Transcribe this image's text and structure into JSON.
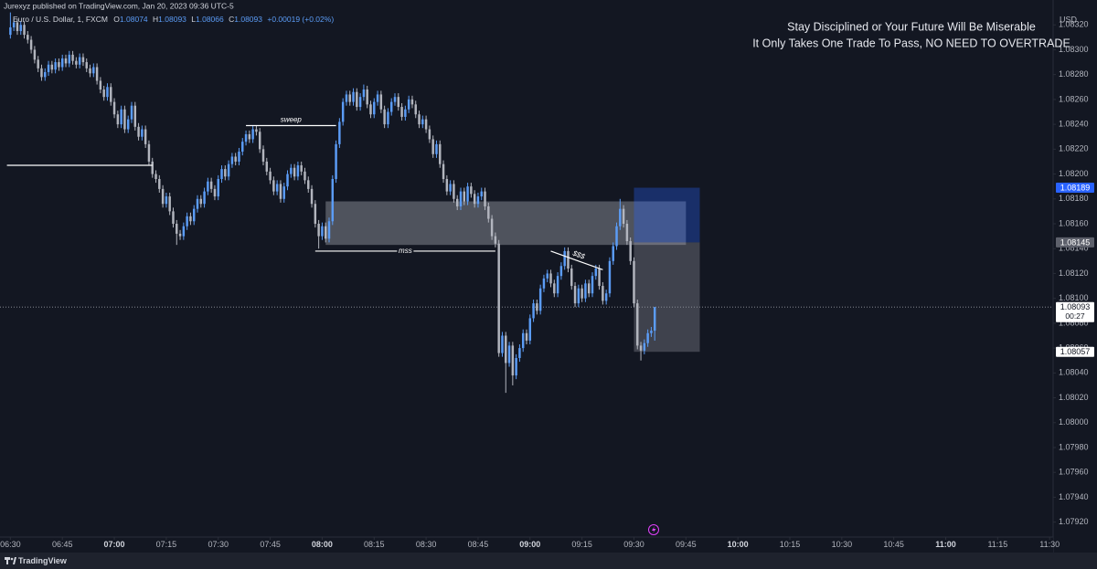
{
  "header": "Jurexyz published on TradingView.com, Jan 20, 2023 09:36 UTC-5",
  "footer": "TradingView",
  "chart_data": {
    "type": "candlestick",
    "symbol": "Euro / U.S. Dollar, 1, FXCM",
    "ohlc_letters": [
      "O",
      "H",
      "L",
      "C"
    ],
    "change": "+0.00019 (+0.02%)",
    "currency": "USD",
    "notes": [
      "Stay Disciplined or Your Future Will Be Miserable",
      "It Only Takes One Trade To Pass, NO NEED TO OVERTRADE"
    ],
    "countdown": "00:27",
    "up_color": "#5b9cf6",
    "down_color": "#b2b5be",
    "grid": false,
    "xlim": [
      "06:27",
      "11:31"
    ],
    "ylim": [
      1.07908,
      1.0834
    ],
    "xticks": [
      "06:30",
      "06:45",
      "07:00",
      "07:15",
      "07:30",
      "07:45",
      "08:00",
      "08:15",
      "08:30",
      "08:45",
      "09:00",
      "09:15",
      "09:30",
      "09:45",
      "10:00",
      "10:15",
      "10:30",
      "10:45",
      "11:00",
      "11:15",
      "11:30"
    ],
    "yticks": [
      {
        "value": 1.0792,
        "label": "1.07920"
      },
      {
        "value": 1.0794,
        "label": "1.07940"
      },
      {
        "value": 1.0796,
        "label": "1.07960"
      },
      {
        "value": 1.0798,
        "label": "1.07980"
      },
      {
        "value": 1.08,
        "label": "1.08000"
      },
      {
        "value": 1.0802,
        "label": "1.08020"
      },
      {
        "value": 1.0804,
        "label": "1.08040"
      },
      {
        "value": 1.0806,
        "label": "1.08060"
      },
      {
        "value": 1.0808,
        "label": "1.08080"
      },
      {
        "value": 1.081,
        "label": "1.08100"
      },
      {
        "value": 1.0812,
        "label": "1.08120"
      },
      {
        "value": 1.0814,
        "label": "1.08140"
      },
      {
        "value": 1.0816,
        "label": "1.08160"
      },
      {
        "value": 1.0818,
        "label": "1.08180"
      },
      {
        "value": 1.082,
        "label": "1.08200"
      },
      {
        "value": 1.0822,
        "label": "1.08220"
      },
      {
        "value": 1.0824,
        "label": "1.08240"
      },
      {
        "value": 1.0826,
        "label": "1.08260"
      },
      {
        "value": 1.0828,
        "label": "1.08280"
      },
      {
        "value": 1.083,
        "label": "1.08300"
      },
      {
        "value": 1.0832,
        "label": "1.08320"
      }
    ],
    "x": [
      "06:30",
      "06:31",
      "06:32",
      "06:33",
      "06:34",
      "06:35",
      "06:36",
      "06:37",
      "06:38",
      "06:39",
      "06:40",
      "06:41",
      "06:42",
      "06:43",
      "06:44",
      "06:45",
      "06:46",
      "06:47",
      "06:48",
      "06:49",
      "06:50",
      "06:51",
      "06:52",
      "06:53",
      "06:54",
      "06:55",
      "06:56",
      "06:57",
      "06:58",
      "06:59",
      "07:00",
      "07:01",
      "07:02",
      "07:03",
      "07:04",
      "07:05",
      "07:06",
      "07:07",
      "07:08",
      "07:09",
      "07:10",
      "07:11",
      "07:12",
      "07:13",
      "07:14",
      "07:15",
      "07:16",
      "07:17",
      "07:18",
      "07:19",
      "07:20",
      "07:21",
      "07:22",
      "07:23",
      "07:24",
      "07:25",
      "07:26",
      "07:27",
      "07:28",
      "07:29",
      "07:30",
      "07:31",
      "07:32",
      "07:33",
      "07:34",
      "07:35",
      "07:36",
      "07:37",
      "07:38",
      "07:39",
      "07:40",
      "07:41",
      "07:42",
      "07:43",
      "07:44",
      "07:45",
      "07:46",
      "07:47",
      "07:48",
      "07:49",
      "07:50",
      "07:51",
      "07:52",
      "07:53",
      "07:54",
      "07:55",
      "07:56",
      "07:57",
      "07:58",
      "07:59",
      "08:00",
      "08:01",
      "08:02",
      "08:03",
      "08:04",
      "08:05",
      "08:06",
      "08:07",
      "08:08",
      "08:09",
      "08:10",
      "08:11",
      "08:12",
      "08:13",
      "08:14",
      "08:15",
      "08:16",
      "08:17",
      "08:18",
      "08:19",
      "08:20",
      "08:21",
      "08:22",
      "08:23",
      "08:24",
      "08:25",
      "08:26",
      "08:27",
      "08:28",
      "08:29",
      "08:30",
      "08:31",
      "08:32",
      "08:33",
      "08:34",
      "08:35",
      "08:36",
      "08:37",
      "08:38",
      "08:39",
      "08:40",
      "08:41",
      "08:42",
      "08:43",
      "08:44",
      "08:45",
      "08:46",
      "08:47",
      "08:48",
      "08:49",
      "08:50",
      "08:51",
      "08:52",
      "08:53",
      "08:54",
      "08:55",
      "08:56",
      "08:57",
      "08:58",
      "08:59",
      "09:00",
      "09:01",
      "09:02",
      "09:03",
      "09:04",
      "09:05",
      "09:06",
      "09:07",
      "09:08",
      "09:09",
      "09:10",
      "09:11",
      "09:12",
      "09:13",
      "09:14",
      "09:15",
      "09:16",
      "09:17",
      "09:18",
      "09:19",
      "09:20",
      "09:21",
      "09:22",
      "09:23",
      "09:24",
      "09:25",
      "09:26",
      "09:27",
      "09:28",
      "09:29",
      "09:30",
      "09:31",
      "09:32",
      "09:33",
      "09:34",
      "09:35",
      "09:36"
    ],
    "open": [
      1.08312,
      1.08318,
      1.08322,
      1.08315,
      1.0832,
      1.08312,
      1.08308,
      1.083,
      1.08292,
      1.08285,
      1.08278,
      1.08282,
      1.08288,
      1.08284,
      1.0829,
      1.08286,
      1.08293,
      1.08289,
      1.08296,
      1.08291,
      1.08288,
      1.08294,
      1.0829,
      1.08285,
      1.08281,
      1.08286,
      1.08275,
      1.08268,
      1.08262,
      1.0827,
      1.08258,
      1.08248,
      1.0824,
      1.08252,
      1.08236,
      1.08244,
      1.08255,
      1.08238,
      1.0823,
      1.08236,
      1.08224,
      1.0821,
      1.082,
      1.08196,
      1.08188,
      1.08176,
      1.08182,
      1.0817,
      1.0816,
      1.08152,
      1.0815,
      1.08158,
      1.08166,
      1.08162,
      1.08172,
      1.0818,
      1.08176,
      1.08186,
      1.08194,
      1.08188,
      1.08182,
      1.08196,
      1.08204,
      1.08198,
      1.08208,
      1.08214,
      1.0821,
      1.08218,
      1.08226,
      1.08232,
      1.08228,
      1.08236,
      1.08234,
      1.0822,
      1.0821,
      1.08202,
      1.08195,
      1.08186,
      1.08192,
      1.0818,
      1.0819,
      1.082,
      1.08205,
      1.08198,
      1.08207,
      1.08202,
      1.08195,
      1.08188,
      1.08176,
      1.0816,
      1.0815,
      1.08158,
      1.08148,
      1.08162,
      1.08196,
      1.08224,
      1.08242,
      1.08258,
      1.08264,
      1.08258,
      1.08266,
      1.08254,
      1.08262,
      1.08268,
      1.08256,
      1.08248,
      1.08258,
      1.08264,
      1.08252,
      1.0824,
      1.0825,
      1.08258,
      1.08262,
      1.08254,
      1.08246,
      1.08252,
      1.0826,
      1.08256,
      1.08248,
      1.0824,
      1.08244,
      1.08236,
      1.08228,
      1.08216,
      1.08224,
      1.08208,
      1.08196,
      1.08186,
      1.08192,
      1.0818,
      1.08174,
      1.08186,
      1.08178,
      1.0819,
      1.08184,
      1.08176,
      1.08182,
      1.08186,
      1.08174,
      1.08164,
      1.0815,
      1.08144,
      1.08056,
      1.0807,
      1.08048,
      1.08062,
      1.08038,
      1.08052,
      1.0806,
      1.08072,
      1.08066,
      1.08084,
      1.08096,
      1.0809,
      1.08108,
      1.08116,
      1.0812,
      1.08112,
      1.08104,
      1.08118,
      1.08126,
      1.08138,
      1.08124,
      1.0811,
      1.08096,
      1.08108,
      1.081,
      1.08112,
      1.08104,
      1.08118,
      1.08124,
      1.0811,
      1.08098,
      1.08104,
      1.0813,
      1.08142,
      1.08158,
      1.08172,
      1.0816,
      1.08146,
      1.0813,
      1.08096,
      1.08062,
      1.08058,
      1.08064,
      1.08072,
      1.08074
    ],
    "high": [
      1.0833,
      1.08325,
      1.08325,
      1.08323,
      1.08323,
      1.08315,
      1.08311,
      1.08303,
      1.08295,
      1.08288,
      1.08285,
      1.08291,
      1.08291,
      1.08293,
      1.08293,
      1.08296,
      1.08296,
      1.08299,
      1.08299,
      1.08294,
      1.08297,
      1.08297,
      1.08293,
      1.08288,
      1.08289,
      1.08289,
      1.08278,
      1.08271,
      1.08273,
      1.08273,
      1.08261,
      1.08251,
      1.08255,
      1.08255,
      1.08247,
      1.08258,
      1.08258,
      1.08241,
      1.08239,
      1.08239,
      1.08227,
      1.08213,
      1.08203,
      1.08199,
      1.08191,
      1.08185,
      1.08185,
      1.08173,
      1.08163,
      1.08155,
      1.08161,
      1.08169,
      1.08169,
      1.08175,
      1.08183,
      1.08183,
      1.08189,
      1.08197,
      1.08197,
      1.08191,
      1.08199,
      1.08207,
      1.08207,
      1.08211,
      1.08217,
      1.08217,
      1.08221,
      1.08229,
      1.08235,
      1.08235,
      1.08239,
      1.08239,
      1.08237,
      1.08223,
      1.08213,
      1.08205,
      1.08198,
      1.08195,
      1.08195,
      1.08193,
      1.08203,
      1.08208,
      1.08208,
      1.0821,
      1.0821,
      1.08205,
      1.08198,
      1.08191,
      1.08179,
      1.08163,
      1.08161,
      1.08161,
      1.08165,
      1.08199,
      1.08227,
      1.08245,
      1.08261,
      1.08267,
      1.08267,
      1.08269,
      1.08269,
      1.08265,
      1.08272,
      1.08271,
      1.08259,
      1.08261,
      1.08267,
      1.08267,
      1.08255,
      1.08253,
      1.08261,
      1.08265,
      1.08265,
      1.08257,
      1.08255,
      1.08263,
      1.08263,
      1.08259,
      1.08251,
      1.08247,
      1.08247,
      1.08239,
      1.08231,
      1.08227,
      1.08227,
      1.08211,
      1.08199,
      1.08195,
      1.08195,
      1.08183,
      1.08189,
      1.08189,
      1.08193,
      1.08193,
      1.08187,
      1.08185,
      1.08189,
      1.08189,
      1.08177,
      1.08167,
      1.08153,
      1.08147,
      1.08073,
      1.08073,
      1.08065,
      1.08065,
      1.08055,
      1.08063,
      1.08075,
      1.08075,
      1.08087,
      1.08099,
      1.08099,
      1.08111,
      1.08119,
      1.08123,
      1.08123,
      1.08115,
      1.08121,
      1.08129,
      1.08141,
      1.08141,
      1.08127,
      1.08113,
      1.08111,
      1.08111,
      1.08115,
      1.08115,
      1.08121,
      1.08127,
      1.08127,
      1.08113,
      1.08107,
      1.08133,
      1.08145,
      1.08161,
      1.0818,
      1.08175,
      1.08163,
      1.08149,
      1.08133,
      1.08099,
      1.08065,
      1.08067,
      1.08075,
      1.08077,
      1.08093
    ],
    "low": [
      1.08309,
      1.08315,
      1.08312,
      1.08312,
      1.08309,
      1.08305,
      1.08297,
      1.08289,
      1.08282,
      1.08275,
      1.08275,
      1.08279,
      1.08281,
      1.08281,
      1.08283,
      1.08283,
      1.08286,
      1.08286,
      1.08288,
      1.08285,
      1.08285,
      1.08287,
      1.08282,
      1.08278,
      1.08278,
      1.08272,
      1.08265,
      1.08259,
      1.08259,
      1.08255,
      1.08245,
      1.08237,
      1.08237,
      1.08233,
      1.08233,
      1.08241,
      1.08235,
      1.08227,
      1.08227,
      1.08221,
      1.08207,
      1.08197,
      1.08193,
      1.08185,
      1.08173,
      1.08173,
      1.08167,
      1.08157,
      1.08143,
      1.08147,
      1.08147,
      1.08155,
      1.08159,
      1.08159,
      1.08169,
      1.08173,
      1.08173,
      1.08183,
      1.08185,
      1.08179,
      1.08179,
      1.08193,
      1.08195,
      1.08195,
      1.08205,
      1.08207,
      1.08207,
      1.08215,
      1.08223,
      1.08225,
      1.08225,
      1.08231,
      1.08217,
      1.08207,
      1.08199,
      1.08192,
      1.08183,
      1.08183,
      1.08177,
      1.08177,
      1.08187,
      1.08197,
      1.08195,
      1.08195,
      1.08199,
      1.08192,
      1.08185,
      1.08173,
      1.08157,
      1.0814,
      1.08147,
      1.08145,
      1.08145,
      1.08159,
      1.08193,
      1.08221,
      1.08239,
      1.08255,
      1.08255,
      1.08255,
      1.08251,
      1.08251,
      1.08259,
      1.08253,
      1.08245,
      1.08245,
      1.08255,
      1.08249,
      1.08237,
      1.08237,
      1.08247,
      1.08255,
      1.08251,
      1.08243,
      1.08243,
      1.08249,
      1.08253,
      1.08245,
      1.08237,
      1.08237,
      1.08233,
      1.08225,
      1.08213,
      1.08213,
      1.08205,
      1.08193,
      1.08183,
      1.08183,
      1.08177,
      1.08171,
      1.08171,
      1.08175,
      1.08175,
      1.08181,
      1.08173,
      1.08173,
      1.08179,
      1.08171,
      1.08161,
      1.08147,
      1.08141,
      1.08053,
      1.08053,
      1.08024,
      1.08045,
      1.0803,
      1.08035,
      1.08049,
      1.08057,
      1.08063,
      1.08063,
      1.08081,
      1.08087,
      1.08087,
      1.08105,
      1.08113,
      1.08109,
      1.08101,
      1.08101,
      1.08115,
      1.08123,
      1.08121,
      1.08107,
      1.08093,
      1.08093,
      1.08097,
      1.08097,
      1.08101,
      1.08101,
      1.08115,
      1.08107,
      1.08095,
      1.08095,
      1.08101,
      1.08127,
      1.08139,
      1.08155,
      1.08157,
      1.08143,
      1.08127,
      1.08093,
      1.08059,
      1.0805,
      1.08055,
      1.08061,
      1.08069,
      1.08066
    ],
    "close": [
      1.08318,
      1.08322,
      1.08315,
      1.0832,
      1.08312,
      1.08308,
      1.083,
      1.08292,
      1.08285,
      1.08278,
      1.08282,
      1.08288,
      1.08284,
      1.0829,
      1.08286,
      1.08293,
      1.08289,
      1.08296,
      1.08291,
      1.08288,
      1.08294,
      1.0829,
      1.08285,
      1.08281,
      1.08286,
      1.08275,
      1.08268,
      1.08262,
      1.0827,
      1.08258,
      1.08248,
      1.0824,
      1.08252,
      1.08236,
      1.08244,
      1.08255,
      1.08238,
      1.0823,
      1.08236,
      1.08224,
      1.0821,
      1.082,
      1.08196,
      1.08188,
      1.08176,
      1.08182,
      1.0817,
      1.0816,
      1.08152,
      1.0815,
      1.08158,
      1.08166,
      1.08162,
      1.08172,
      1.0818,
      1.08176,
      1.08186,
      1.08194,
      1.08188,
      1.08182,
      1.08196,
      1.08204,
      1.08198,
      1.08208,
      1.08214,
      1.0821,
      1.08218,
      1.08226,
      1.08232,
      1.08228,
      1.08236,
      1.08234,
      1.0822,
      1.0821,
      1.08202,
      1.08195,
      1.08186,
      1.08192,
      1.0818,
      1.0819,
      1.082,
      1.08205,
      1.08198,
      1.08207,
      1.08202,
      1.08195,
      1.08188,
      1.08176,
      1.0816,
      1.0815,
      1.08158,
      1.08148,
      1.08162,
      1.08196,
      1.08224,
      1.08242,
      1.08258,
      1.08264,
      1.08258,
      1.08266,
      1.08254,
      1.08262,
      1.08268,
      1.08256,
      1.08248,
      1.08258,
      1.08264,
      1.08252,
      1.0824,
      1.0825,
      1.08258,
      1.08262,
      1.08254,
      1.08246,
      1.08252,
      1.0826,
      1.08256,
      1.08248,
      1.0824,
      1.08244,
      1.08236,
      1.08228,
      1.08216,
      1.08224,
      1.08208,
      1.08196,
      1.08186,
      1.08192,
      1.0818,
      1.08174,
      1.08186,
      1.08178,
      1.0819,
      1.08184,
      1.08176,
      1.08182,
      1.08186,
      1.08174,
      1.08164,
      1.0815,
      1.08144,
      1.08056,
      1.0807,
      1.08048,
      1.08062,
      1.08038,
      1.08052,
      1.0806,
      1.08072,
      1.08066,
      1.08084,
      1.08096,
      1.0809,
      1.08108,
      1.08116,
      1.0812,
      1.08112,
      1.08104,
      1.08118,
      1.08126,
      1.08138,
      1.08124,
      1.0811,
      1.08096,
      1.08108,
      1.081,
      1.08112,
      1.08104,
      1.08118,
      1.08124,
      1.0811,
      1.08098,
      1.08104,
      1.0813,
      1.08142,
      1.08158,
      1.08172,
      1.0816,
      1.08146,
      1.0813,
      1.08096,
      1.08062,
      1.08058,
      1.08064,
      1.08072,
      1.08074,
      1.08093
    ],
    "lines": [
      {
        "x": [
          "06:29",
          "07:11"
        ],
        "y": [
          1.08207,
          1.08207
        ]
      },
      {
        "label": "sweep",
        "x": [
          "07:38",
          "08:04"
        ],
        "y": [
          1.08239,
          1.08239
        ]
      },
      {
        "label": "mss",
        "x": [
          "07:58",
          "08:50"
        ],
        "y": [
          1.08138,
          1.08138
        ]
      },
      {
        "label": "$$$",
        "x": [
          "09:06",
          "09:21"
        ],
        "y": [
          1.08138,
          1.08123
        ]
      }
    ],
    "boxes": [
      {
        "x": [
          "08:01",
          "09:45"
        ],
        "y": [
          1.08178,
          1.08143
        ],
        "color": "rgba(178,181,190,0.38)"
      },
      {
        "x": [
          "09:30",
          "09:49"
        ],
        "y": [
          1.08189,
          1.08145
        ],
        "color": "rgba(41,98,255,0.32)"
      },
      {
        "x": [
          "09:30",
          "09:49"
        ],
        "y": [
          1.08145,
          1.08057
        ],
        "color": "rgba(178,181,190,0.28)"
      }
    ],
    "price_labels": [
      {
        "value": 1.08189,
        "bg": "#2962ff",
        "text_color": "#ffffff"
      },
      {
        "value": 1.08145,
        "bg": "#5d606b",
        "text_color": "#ffffff"
      },
      {
        "value": 1.08057,
        "bg": "#ffffff",
        "text_color": "#131722"
      }
    ]
  }
}
